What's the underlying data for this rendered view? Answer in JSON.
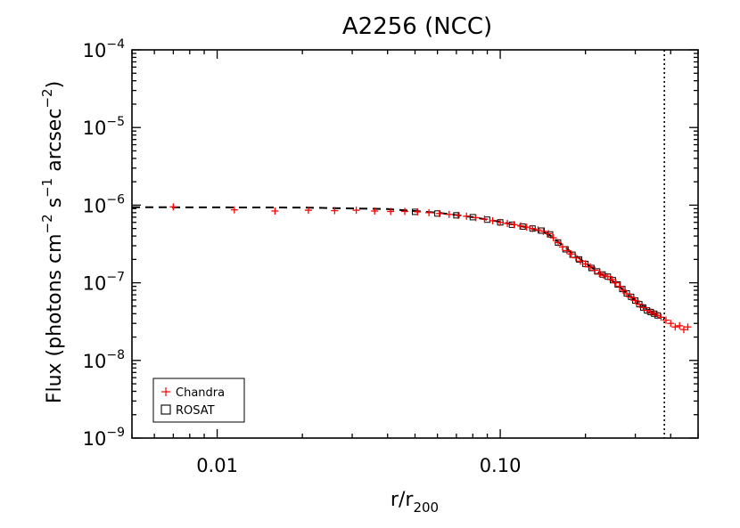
{
  "chart_data": {
    "type": "scatter",
    "title": "A2256 (NCC)",
    "xlabel": {
      "base": "r/r",
      "sub": "200"
    },
    "ylabel": {
      "parts": [
        {
          "t": "Flux (photons cm"
        },
        {
          "t": "−2",
          "sup": true
        },
        {
          "t": " s"
        },
        {
          "t": "−1",
          "sup": true
        },
        {
          "t": " arcsec"
        },
        {
          "t": "−2",
          "sup": true
        },
        {
          "t": ")"
        }
      ]
    },
    "x_scale": "log",
    "y_scale": "log",
    "xlim": [
      0.005,
      0.5
    ],
    "ylim": [
      1e-09,
      0.0001
    ],
    "x_ticks": [
      {
        "value": 0.01,
        "label": "0.01"
      },
      {
        "value": 0.1,
        "label": "0.10"
      }
    ],
    "y_ticks": [
      {
        "value": 0.0001,
        "base": "10",
        "exp": "−4"
      },
      {
        "value": 1e-05,
        "base": "10",
        "exp": "−5"
      },
      {
        "value": 1e-06,
        "base": "10",
        "exp": "−6"
      },
      {
        "value": 1e-07,
        "base": "10",
        "exp": "−7"
      },
      {
        "value": 1e-08,
        "base": "10",
        "exp": "−8"
      },
      {
        "value": 1e-09,
        "base": "10",
        "exp": "−9"
      }
    ],
    "vline": {
      "x": 0.38,
      "style": "dotted"
    },
    "legend": {
      "position": "bottom-left",
      "entries": [
        {
          "label": "Chandra",
          "symbol": "plus",
          "color": "#ff0000"
        },
        {
          "label": "ROSAT",
          "symbol": "square",
          "color": "#000000"
        }
      ]
    },
    "series": [
      {
        "name": "Chandra",
        "symbol": "plus",
        "color": "#ff0000",
        "points": [
          [
            0.007,
            9.5e-07
          ],
          [
            0.0115,
            8.7e-07
          ],
          [
            0.016,
            8.4e-07
          ],
          [
            0.021,
            8.6e-07
          ],
          [
            0.026,
            8.5e-07
          ],
          [
            0.031,
            8.6e-07
          ],
          [
            0.036,
            8.4e-07
          ],
          [
            0.041,
            8.3e-07
          ],
          [
            0.046,
            8.3e-07
          ],
          [
            0.051,
            8.2e-07
          ],
          [
            0.056,
            8e-07
          ],
          [
            0.061,
            7.8e-07
          ],
          [
            0.066,
            7.6e-07
          ],
          [
            0.071,
            7.4e-07
          ],
          [
            0.076,
            7.2e-07
          ],
          [
            0.082,
            6.9e-07
          ],
          [
            0.088,
            6.6e-07
          ],
          [
            0.094,
            6.3e-07
          ],
          [
            0.1,
            6e-07
          ],
          [
            0.106,
            5.8e-07
          ],
          [
            0.112,
            5.6e-07
          ],
          [
            0.118,
            5.4e-07
          ],
          [
            0.124,
            5.2e-07
          ],
          [
            0.13,
            5e-07
          ],
          [
            0.136,
            4.8e-07
          ],
          [
            0.142,
            4.6e-07
          ],
          [
            0.148,
            4.3e-07
          ],
          [
            0.154,
            3.8e-07
          ],
          [
            0.16,
            3.3e-07
          ],
          [
            0.166,
            2.9e-07
          ],
          [
            0.172,
            2.6e-07
          ],
          [
            0.178,
            2.35e-07
          ],
          [
            0.185,
            2.1e-07
          ],
          [
            0.192,
            1.9e-07
          ],
          [
            0.2,
            1.75e-07
          ],
          [
            0.208,
            1.6e-07
          ],
          [
            0.216,
            1.45e-07
          ],
          [
            0.224,
            1.32e-07
          ],
          [
            0.232,
            1.25e-07
          ],
          [
            0.24,
            1.2e-07
          ],
          [
            0.248,
            1.1e-07
          ],
          [
            0.256,
            1e-07
          ],
          [
            0.264,
            9e-08
          ],
          [
            0.272,
            8e-08
          ],
          [
            0.28,
            7.2e-08
          ],
          [
            0.29,
            6.5e-08
          ],
          [
            0.3,
            5.9e-08
          ],
          [
            0.31,
            5.3e-08
          ],
          [
            0.32,
            4.8e-08
          ],
          [
            0.33,
            4.4e-08
          ],
          [
            0.34,
            4.2e-08
          ],
          [
            0.35,
            4e-08
          ],
          [
            0.36,
            3.8e-08
          ],
          [
            0.37,
            3.6e-08
          ],
          [
            0.385,
            3.3e-08
          ],
          [
            0.4,
            3e-08
          ],
          [
            0.415,
            2.7e-08
          ],
          [
            0.43,
            2.8e-08
          ],
          [
            0.445,
            2.5e-08
          ],
          [
            0.46,
            2.7e-08
          ]
        ]
      },
      {
        "name": "ROSAT",
        "symbol": "square",
        "color": "#000000",
        "points": [
          [
            0.05,
            8.2e-07
          ],
          [
            0.06,
            7.8e-07
          ],
          [
            0.07,
            7.4e-07
          ],
          [
            0.08,
            7e-07
          ],
          [
            0.09,
            6.5e-07
          ],
          [
            0.1,
            6e-07
          ],
          [
            0.11,
            5.6e-07
          ],
          [
            0.12,
            5.3e-07
          ],
          [
            0.13,
            5e-07
          ],
          [
            0.14,
            4.7e-07
          ],
          [
            0.15,
            4.2e-07
          ],
          [
            0.16,
            3.3e-07
          ],
          [
            0.17,
            2.7e-07
          ],
          [
            0.18,
            2.3e-07
          ],
          [
            0.19,
            2e-07
          ],
          [
            0.2,
            1.75e-07
          ],
          [
            0.21,
            1.55e-07
          ],
          [
            0.22,
            1.4e-07
          ],
          [
            0.23,
            1.28e-07
          ],
          [
            0.24,
            1.2e-07
          ],
          [
            0.25,
            1.08e-07
          ],
          [
            0.26,
            9.5e-08
          ],
          [
            0.27,
            8.3e-08
          ],
          [
            0.28,
            7.3e-08
          ],
          [
            0.29,
            6.6e-08
          ],
          [
            0.3,
            5.9e-08
          ],
          [
            0.31,
            5.3e-08
          ],
          [
            0.32,
            4.8e-08
          ],
          [
            0.33,
            4.4e-08
          ],
          [
            0.34,
            4.2e-08
          ],
          [
            0.35,
            4e-08
          ],
          [
            0.36,
            3.8e-08
          ]
        ]
      },
      {
        "name": "",
        "style": "dashed-line",
        "color": "#000000",
        "points": [
          [
            0.005,
            9.4e-07
          ],
          [
            0.02,
            9.3e-07
          ],
          [
            0.04,
            8.9e-07
          ],
          [
            0.06,
            8e-07
          ],
          [
            0.08,
            7e-07
          ],
          [
            0.1,
            6.1e-07
          ],
          [
            0.12,
            5.3e-07
          ],
          [
            0.14,
            4.6e-07
          ],
          [
            0.15,
            4.1e-07
          ],
          [
            0.16,
            3.4e-07
          ],
          [
            0.18,
            2.4e-07
          ],
          [
            0.2,
            1.8e-07
          ],
          [
            0.22,
            1.4e-07
          ],
          [
            0.25,
            1.05e-07
          ],
          [
            0.3,
            6e-08
          ],
          [
            0.35,
            4e-08
          ],
          [
            0.38,
            3.4e-08
          ]
        ]
      }
    ]
  }
}
